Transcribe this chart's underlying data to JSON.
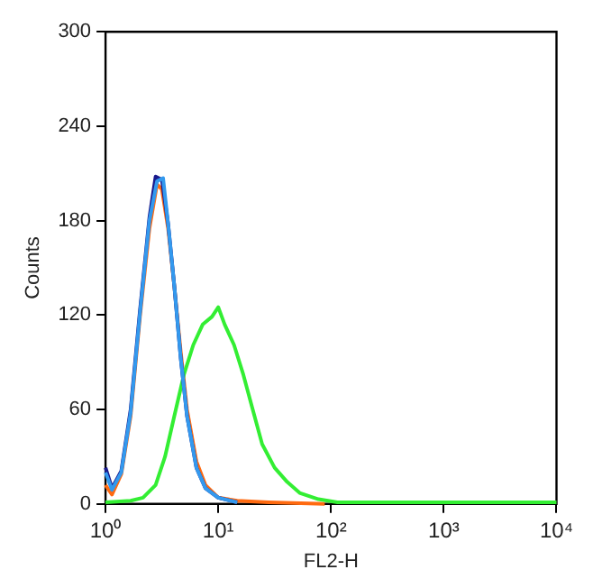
{
  "chart_data": {
    "type": "line",
    "xlabel": "FL2-H",
    "ylabel": "Counts",
    "log": "x",
    "grid": false,
    "legend": false,
    "marker": "none",
    "line_style": "solid",
    "xlim": [
      1,
      10000
    ],
    "xticks": [
      {
        "value": 1,
        "label": "10⁰"
      },
      {
        "value": 10,
        "label": "10¹"
      },
      {
        "value": 100,
        "label": "10²"
      },
      {
        "value": 1000,
        "label": "10³"
      },
      {
        "value": 10000,
        "label": "10⁴"
      }
    ],
    "ylim": [
      0,
      300
    ],
    "yticks": [
      0,
      60,
      120,
      180,
      240,
      300
    ],
    "series": [
      {
        "color": "#3399ee",
        "x": [
          1,
          1.14,
          1.38,
          1.67,
          2.02,
          2.45,
          2.86,
          3.24,
          3.59,
          4.08,
          4.64,
          5.28,
          6.4,
          7.7,
          10,
          14.7
        ],
        "values": [
          20,
          9,
          20,
          58,
          121,
          180,
          205,
          207,
          178,
          138,
          93,
          56,
          23,
          10,
          4,
          1
        ]
      },
      {
        "color": "#1a1a8c",
        "x": [
          1,
          1.14,
          1.38,
          1.67,
          2.02,
          2.45,
          2.78,
          3.16,
          3.59,
          4.08,
          4.64,
          5.28,
          6.4,
          7.7,
          10,
          14.7
        ],
        "values": [
          23,
          10,
          21,
          60,
          123,
          182,
          208,
          206,
          178,
          138,
          93,
          56,
          23,
          10,
          4,
          1
        ]
      },
      {
        "color": "#33ee33",
        "x": [
          1,
          1.67,
          2.15,
          2.78,
          3.37,
          4.08,
          4.95,
          6.0,
          7.27,
          8.8,
          10,
          11.4,
          13.8,
          16.7,
          20.2,
          24.5,
          31.6,
          40.8,
          52.7,
          77.4,
          114,
          190,
          680,
          10000
        ],
        "values": [
          1,
          2,
          4,
          12,
          30,
          56,
          82,
          101,
          114,
          119,
          125,
          114,
          101,
          82,
          60,
          38,
          23,
          14,
          7,
          3,
          1,
          1,
          1,
          1
        ]
      },
      {
        "color": "#ff6a10",
        "x": [
          1,
          1.14,
          1.38,
          1.67,
          2.02,
          2.45,
          2.86,
          3.16,
          3.59,
          4.08,
          4.64,
          5.28,
          6.4,
          7.7,
          10,
          14.7,
          28,
          88
        ],
        "values": [
          12,
          6,
          19,
          56,
          119,
          175,
          203,
          200,
          175,
          138,
          97,
          60,
          27,
          12,
          4,
          2,
          1,
          0
        ]
      }
    ]
  }
}
